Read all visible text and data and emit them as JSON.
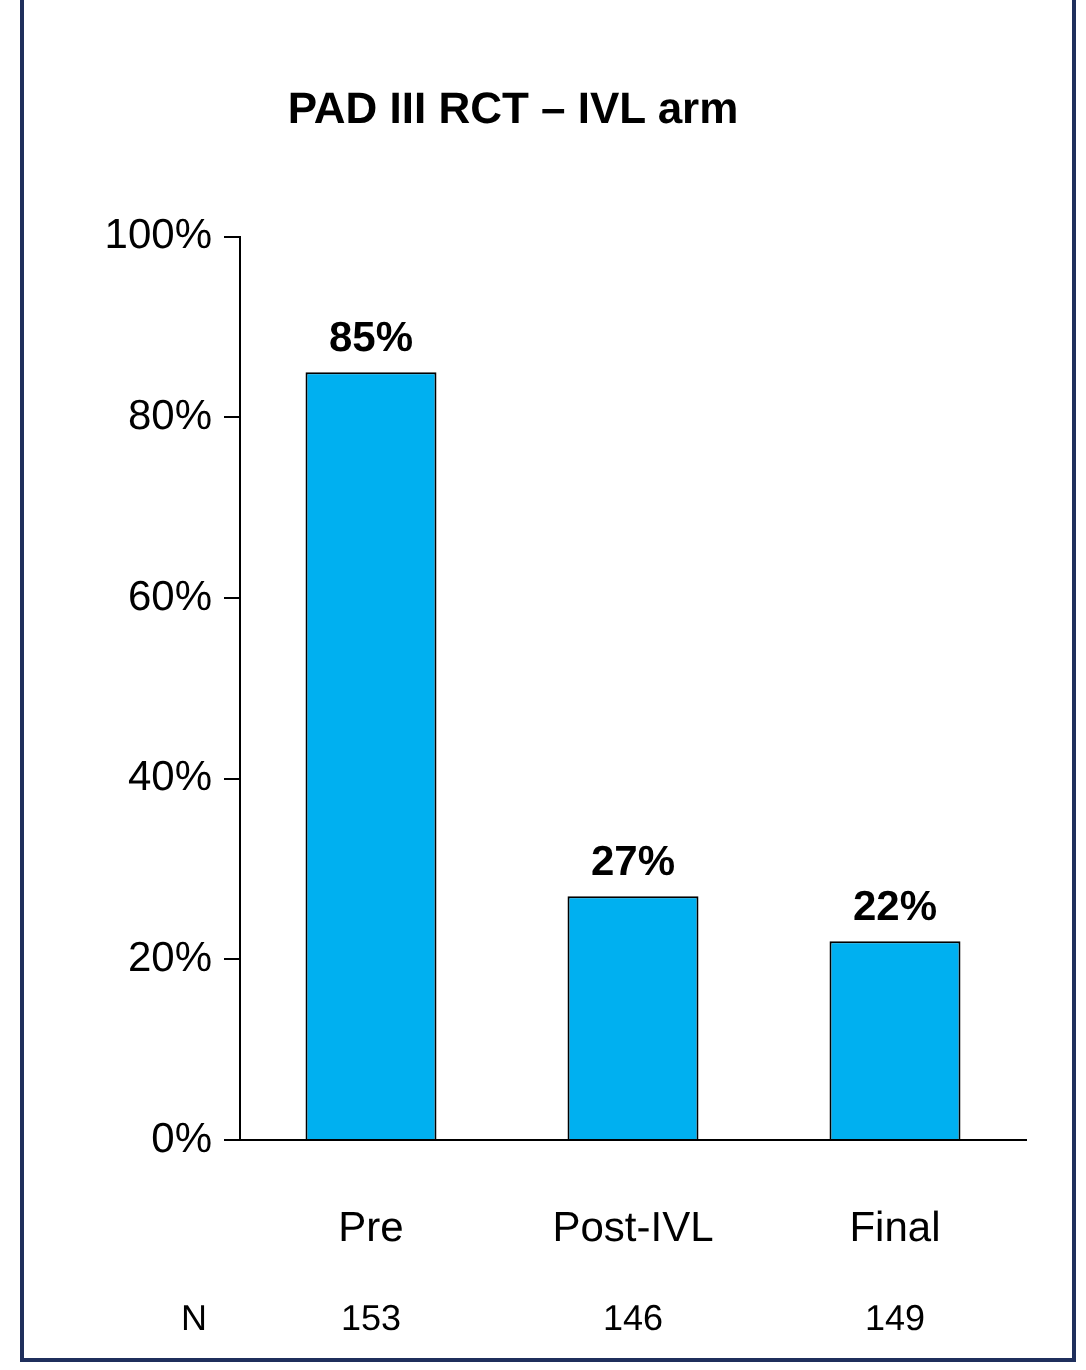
{
  "chart_data": {
    "type": "bar",
    "title": "PAD III RCT – IVL arm",
    "categories": [
      "Pre",
      "Post-IVL",
      "Final"
    ],
    "values": [
      85,
      27,
      22
    ],
    "value_labels": [
      "85%",
      "27%",
      "22%"
    ],
    "color": "#00b0f0",
    "ylim": [
      0,
      100
    ],
    "yticks": [
      {
        "value": 0,
        "label": "0%"
      },
      {
        "value": 20,
        "label": "20%"
      },
      {
        "value": 40,
        "label": "40%"
      },
      {
        "value": 60,
        "label": "60%"
      },
      {
        "value": 80,
        "label": "80%"
      },
      {
        "value": 100,
        "label": "100%"
      }
    ],
    "annotations": [
      "N",
      "153",
      "146",
      "149"
    ]
  }
}
